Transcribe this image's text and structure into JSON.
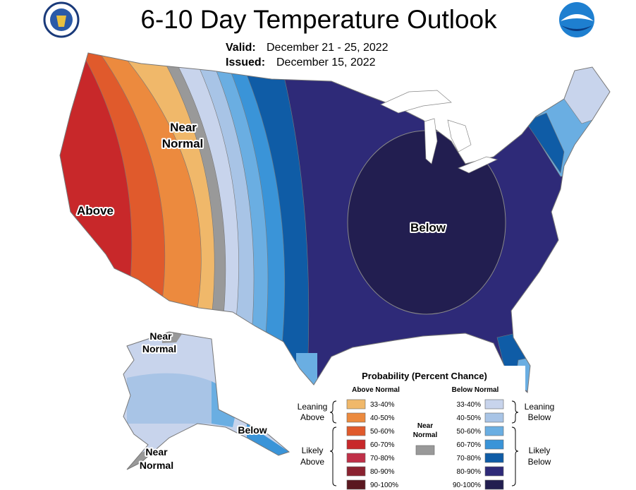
{
  "header": {
    "title": "6-10 Day Temperature Outlook",
    "valid_label": "Valid:",
    "valid": "December 21 - 25, 2022",
    "issued_label": "Issued:",
    "issued": "December 15, 2022"
  },
  "map_labels": [
    {
      "lines": [
        "Near",
        "Normal"
      ]
    },
    {
      "lines": [
        "Above"
      ]
    },
    {
      "lines": [
        "Below"
      ]
    },
    {
      "lines": [
        "Near",
        "Normal"
      ]
    },
    {
      "lines": [
        "Below"
      ]
    },
    {
      "lines": [
        "Near",
        "Normal"
      ]
    }
  ],
  "legend": {
    "title": "Probability (Percent Chance)",
    "above_header": "Above Normal",
    "below_header": "Below Normal",
    "above": [
      {
        "range": "33-40%",
        "color": "#f0b86a"
      },
      {
        "range": "40-50%",
        "color": "#ec8a3e"
      },
      {
        "range": "50-60%",
        "color": "#e05a2c"
      },
      {
        "range": "60-70%",
        "color": "#c8282a"
      },
      {
        "range": "70-80%",
        "color": "#c03048"
      },
      {
        "range": "80-90%",
        "color": "#8a2230"
      },
      {
        "range": "90-100%",
        "color": "#5a1820"
      }
    ],
    "below": [
      {
        "range": "33-40%",
        "color": "#c8d4ec"
      },
      {
        "range": "40-50%",
        "color": "#a8c4e6"
      },
      {
        "range": "50-60%",
        "color": "#6aaee2"
      },
      {
        "range": "60-70%",
        "color": "#3a94d8"
      },
      {
        "range": "70-80%",
        "color": "#0f5ca6"
      },
      {
        "range": "80-90%",
        "color": "#2e2a78"
      },
      {
        "range": "90-100%",
        "color": "#221e50"
      }
    ],
    "near": {
      "lines": [
        "Near",
        "Normal"
      ],
      "color": "#999999"
    },
    "groups": [
      {
        "lines": [
          "Leaning",
          "Above"
        ]
      },
      {
        "lines": [
          "Likely",
          "Above"
        ]
      },
      {
        "lines": [
          "Leaning",
          "Below"
        ]
      },
      {
        "lines": [
          "Likely",
          "Below"
        ]
      }
    ]
  }
}
